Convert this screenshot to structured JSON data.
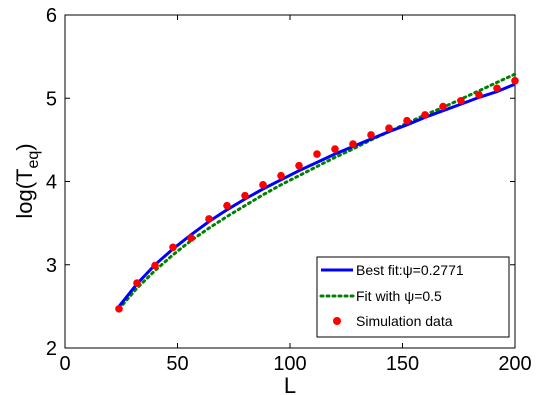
{
  "chart_data": {
    "type": "line",
    "title": "",
    "xlabel": "L",
    "ylabel_main": "log(T",
    "ylabel_sub": "eq",
    "ylabel_close": ")",
    "xlim": [
      0,
      200
    ],
    "ylim": [
      2,
      6
    ],
    "xticks": [
      0,
      50,
      100,
      150,
      200
    ],
    "yticks": [
      2,
      3,
      4,
      5,
      6
    ],
    "grid": false,
    "legend_position": "bottom-right",
    "series": [
      {
        "name": "Best fit:ψ=0.2771",
        "style": "solid",
        "color": "#0000ff",
        "x": [
          24,
          32,
          40,
          48,
          56,
          64,
          72,
          80,
          88,
          96,
          104,
          112,
          120,
          128,
          136,
          144,
          152,
          160,
          168,
          176,
          184,
          192,
          200
        ],
        "y": [
          2.5,
          2.77,
          3.0,
          3.19,
          3.36,
          3.52,
          3.66,
          3.79,
          3.91,
          4.02,
          4.13,
          4.23,
          4.33,
          4.42,
          4.51,
          4.6,
          4.68,
          4.77,
          4.85,
          4.93,
          5.01,
          5.08,
          5.17
        ]
      },
      {
        "name": "Fit with ψ=0.5",
        "style": "dotted",
        "color": "#008000",
        "x": [
          24,
          32,
          40,
          48,
          56,
          64,
          72,
          80,
          88,
          96,
          104,
          112,
          120,
          128,
          136,
          144,
          152,
          160,
          168,
          176,
          184,
          192,
          200
        ],
        "y": [
          2.47,
          2.72,
          2.93,
          3.12,
          3.29,
          3.44,
          3.58,
          3.71,
          3.84,
          3.96,
          4.07,
          4.18,
          4.29,
          4.39,
          4.5,
          4.6,
          4.7,
          4.8,
          4.89,
          4.99,
          5.09,
          5.19,
          5.29
        ]
      },
      {
        "name": "Simulation data",
        "style": "markers",
        "color": "#ff0000",
        "x": [
          24,
          32,
          40,
          48,
          56,
          64,
          72,
          80,
          88,
          96,
          104,
          112,
          120,
          128,
          136,
          144,
          152,
          160,
          168,
          176,
          184,
          192,
          200
        ],
        "y": [
          2.47,
          2.78,
          2.99,
          3.21,
          3.32,
          3.55,
          3.71,
          3.83,
          3.96,
          4.07,
          4.19,
          4.33,
          4.39,
          4.45,
          4.56,
          4.64,
          4.73,
          4.8,
          4.9,
          4.97,
          5.04,
          5.12,
          5.21
        ]
      }
    ]
  }
}
